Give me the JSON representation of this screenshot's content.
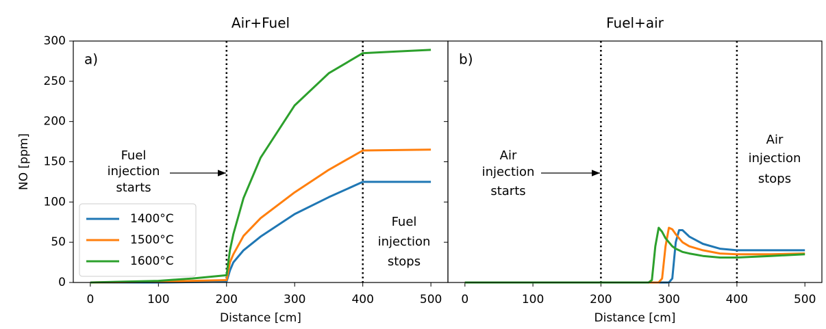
{
  "chart_data": [
    {
      "type": "line",
      "title": "Air+Fuel",
      "xlabel": "Distance [cm]",
      "ylabel": "NO [ppm]",
      "panel_label": "a)",
      "x": [
        0,
        50,
        100,
        150,
        200,
        205,
        210,
        225,
        250,
        300,
        350,
        400,
        450,
        500
      ],
      "series": [
        {
          "name": "1400°C",
          "color": "#1f77b4",
          "values": [
            0,
            0,
            0,
            0.5,
            1,
            15,
            25,
            40,
            57,
            85,
            106,
            125,
            125,
            125
          ]
        },
        {
          "name": "1500°C",
          "color": "#ff7f0e",
          "values": [
            0,
            0.5,
            1,
            2,
            3,
            25,
            35,
            58,
            80,
            112,
            140,
            164,
            164.5,
            165
          ]
        },
        {
          "name": "1600°C",
          "color": "#2ca02c",
          "values": [
            0,
            1,
            2,
            5,
            9,
            40,
            60,
            105,
            155,
            220,
            260,
            285,
            287,
            289
          ]
        }
      ],
      "xlim": [
        -25,
        525
      ],
      "ylim": [
        0,
        300
      ],
      "xticks": [
        0,
        100,
        200,
        300,
        400,
        500
      ],
      "yticks": [
        0,
        50,
        100,
        150,
        200,
        250,
        300
      ],
      "show_ytick_labels": true,
      "legend": "lower left",
      "vlines": [
        200,
        400
      ],
      "annotations": [
        [
          "Fuel",
          "injection",
          "starts"
        ],
        [
          "Fuel",
          "injection",
          "stops"
        ]
      ]
    },
    {
      "type": "line",
      "title": "Fuel+air",
      "xlabel": "Distance [cm]",
      "panel_label": "b)",
      "x": [
        0,
        100,
        200,
        250,
        270,
        275,
        280,
        285,
        290,
        295,
        300,
        305,
        310,
        315,
        320,
        330,
        350,
        375,
        400,
        450,
        500
      ],
      "series": [
        {
          "color": "#1f77b4",
          "values": [
            0,
            0,
            0,
            0,
            0,
            0,
            0,
            0,
            0,
            0,
            0,
            5,
            50,
            65,
            65,
            57,
            48,
            42,
            40,
            40,
            40
          ]
        },
        {
          "color": "#ff7f0e",
          "values": [
            0,
            0,
            0,
            0,
            0,
            0,
            0,
            0,
            5,
            45,
            68,
            66,
            60,
            55,
            50,
            45,
            40,
            36,
            35,
            35,
            36
          ]
        },
        {
          "color": "#2ca02c",
          "values": [
            0,
            0,
            0,
            0,
            0,
            3,
            45,
            68,
            63,
            55,
            50,
            45,
            42,
            40,
            38,
            36,
            33,
            31,
            31,
            33,
            35
          ]
        }
      ],
      "xlim": [
        -25,
        525
      ],
      "ylim": [
        0,
        300
      ],
      "xticks": [
        0,
        100,
        200,
        300,
        400,
        500
      ],
      "yticks": [
        0,
        50,
        100,
        150,
        200,
        250,
        300
      ],
      "show_ytick_labels": false,
      "vlines": [
        200,
        400
      ],
      "annotations": [
        [
          "Air",
          "injection",
          "starts"
        ],
        [
          "Air",
          "injection",
          "stops"
        ]
      ]
    }
  ]
}
